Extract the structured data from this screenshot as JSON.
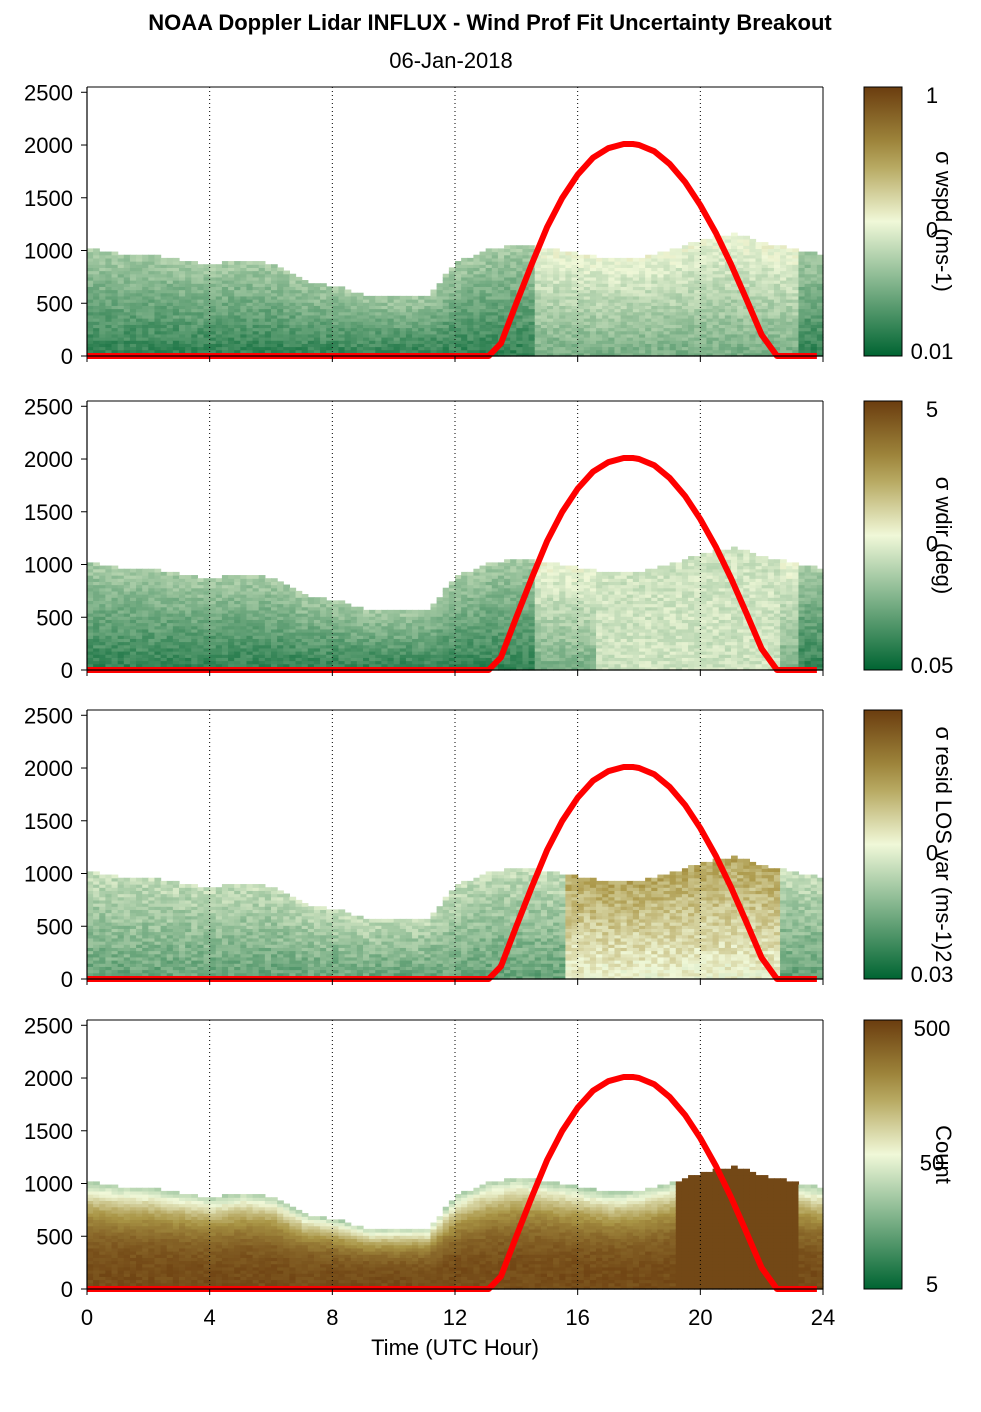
{
  "title": "NOAA Doppler Lidar INFLUX - Wind Prof Fit Uncertainty Breakout",
  "subtitle": "06-Jan-2018",
  "xlabel": "Time (UTC Hour)",
  "x_ticks": [
    "0",
    "4",
    "8",
    "12",
    "16",
    "20",
    "24"
  ],
  "y_ticks": [
    "0",
    "500",
    "1000",
    "1500",
    "2000",
    "2500"
  ],
  "colors": {
    "sun_curve": "#ff0000",
    "scale_low": "#006432",
    "scale_mid": "#f0f8d8",
    "scale_high": "#6b3d0f"
  },
  "chart_data": [
    {
      "type": "heatmap",
      "panel": 1,
      "colorbar_label": "σ wspd (ms-1)",
      "colorbar_ticks": [
        "1",
        "0",
        "0.01"
      ],
      "x_range": [
        0,
        24
      ],
      "y_range": [
        0,
        2550
      ],
      "grid_x": [
        4,
        8,
        12,
        16,
        20,
        24
      ],
      "top_boundary": {
        "x": [
          0,
          1,
          2,
          3,
          4,
          5,
          6,
          7,
          8,
          9,
          10,
          11,
          12,
          13,
          14,
          15,
          16,
          17,
          18,
          19,
          20,
          21,
          22,
          23,
          23.8
        ],
        "y": [
          1000,
          960,
          940,
          900,
          850,
          900,
          860,
          700,
          650,
          560,
          560,
          560,
          880,
          1000,
          1050,
          1000,
          950,
          900,
          930,
          1000,
          1100,
          1150,
          1050,
          1000,
          950
        ]
      },
      "dominant_level": "low"
    },
    {
      "type": "heatmap",
      "panel": 2,
      "colorbar_label": "σ wdir (deg)",
      "colorbar_ticks": [
        "5",
        "0",
        "0.05"
      ],
      "x_range": [
        0,
        24
      ],
      "y_range": [
        0,
        2550
      ],
      "grid_x": [
        4,
        8,
        12,
        16,
        20,
        24
      ],
      "top_boundary": {
        "x": [
          0,
          1,
          2,
          3,
          4,
          5,
          6,
          7,
          8,
          9,
          10,
          11,
          12,
          13,
          14,
          15,
          16,
          17,
          18,
          19,
          20,
          21,
          22,
          23,
          23.8
        ],
        "y": [
          1000,
          960,
          940,
          900,
          850,
          900,
          860,
          700,
          650,
          560,
          560,
          560,
          880,
          1000,
          1050,
          1000,
          950,
          900,
          930,
          1000,
          1100,
          1150,
          1050,
          1000,
          950
        ]
      },
      "dominant_level": "low"
    },
    {
      "type": "heatmap",
      "panel": 3,
      "colorbar_label": "σ resid LOS var (ms-1)2",
      "colorbar_ticks": [
        "0",
        "0.03"
      ],
      "x_range": [
        0,
        24
      ],
      "y_range": [
        0,
        2550
      ],
      "grid_x": [
        4,
        8,
        12,
        16,
        20,
        24
      ],
      "top_boundary": {
        "x": [
          0,
          1,
          2,
          3,
          4,
          5,
          6,
          7,
          8,
          9,
          10,
          11,
          12,
          13,
          14,
          15,
          16,
          17,
          18,
          19,
          20,
          21,
          22,
          23,
          23.8
        ],
        "y": [
          1000,
          960,
          940,
          900,
          850,
          900,
          860,
          700,
          650,
          560,
          560,
          560,
          880,
          1000,
          1050,
          1000,
          950,
          900,
          930,
          1000,
          1100,
          1150,
          1050,
          1000,
          950
        ]
      },
      "dominant_level": "mid"
    },
    {
      "type": "heatmap",
      "panel": 4,
      "colorbar_label": "Count",
      "colorbar_ticks": [
        "500",
        "50",
        "5"
      ],
      "x_range": [
        0,
        24
      ],
      "y_range": [
        0,
        2550
      ],
      "grid_x": [
        4,
        8,
        12,
        16,
        20,
        24
      ],
      "top_boundary": {
        "x": [
          0,
          1,
          2,
          3,
          4,
          5,
          6,
          7,
          8,
          9,
          10,
          11,
          12,
          13,
          14,
          15,
          16,
          17,
          18,
          19,
          20,
          21,
          22,
          23,
          23.8
        ],
        "y": [
          1000,
          960,
          940,
          900,
          850,
          900,
          860,
          700,
          650,
          560,
          560,
          560,
          880,
          1000,
          1050,
          1000,
          950,
          900,
          930,
          1000,
          1100,
          1150,
          1050,
          1000,
          950
        ]
      },
      "dominant_level": "high"
    }
  ],
  "sun_curve": {
    "x": [
      0,
      13.1,
      13.5,
      14,
      14.5,
      15,
      15.5,
      16,
      16.5,
      17,
      17.5,
      17.8,
      18,
      18.5,
      19,
      19.5,
      20,
      20.5,
      21,
      21.5,
      22,
      22.5,
      23.8
    ],
    "y": [
      0,
      0,
      120,
      500,
      870,
      1220,
      1500,
      1720,
      1880,
      1970,
      2010,
      2010,
      2000,
      1940,
      1820,
      1650,
      1430,
      1170,
      870,
      540,
      200,
      0,
      0
    ]
  }
}
